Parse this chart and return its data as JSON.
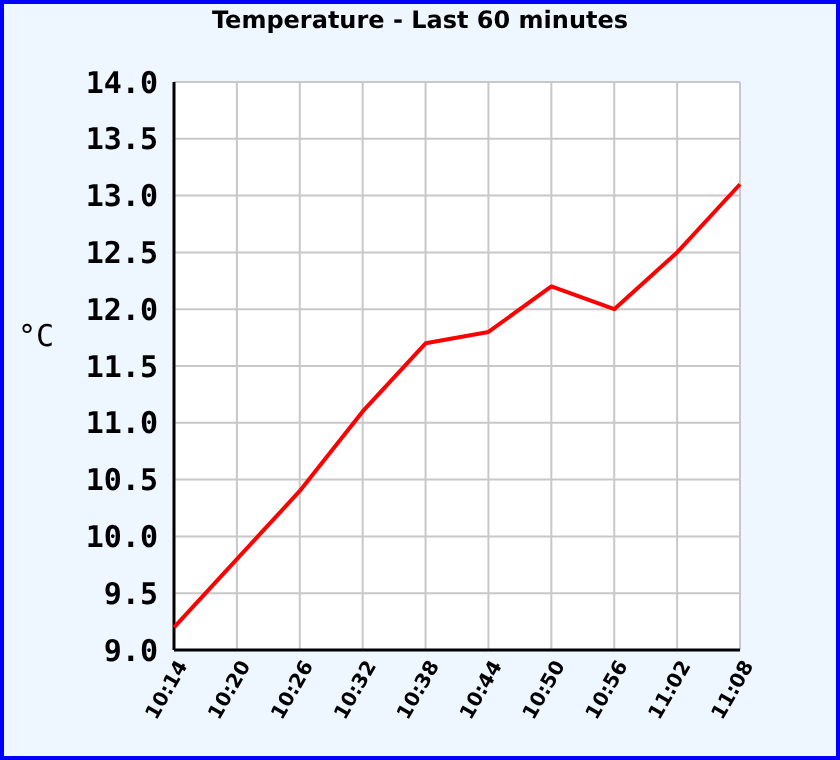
{
  "chart_data": {
    "type": "line",
    "title": "Temperature - Last 60 minutes",
    "ylabel": "°C",
    "categories": [
      "10:14",
      "10:20",
      "10:26",
      "10:32",
      "10:38",
      "10:44",
      "10:50",
      "10:56",
      "11:02",
      "11:08"
    ],
    "series": [
      {
        "color": "#ff0000",
        "values": [
          9.2,
          9.8,
          10.4,
          11.1,
          11.7,
          11.8,
          12.2,
          12.0,
          12.5,
          13.1
        ]
      }
    ],
    "ylim": [
      9,
      14
    ],
    "yticks": [
      {
        "value": 9,
        "label": "9.0"
      },
      {
        "value": 9.5,
        "label": "9.5"
      },
      {
        "value": 10,
        "label": "10.0"
      },
      {
        "value": 10.5,
        "label": "10.5"
      },
      {
        "value": 11,
        "label": "11.0"
      },
      {
        "value": 11.5,
        "label": "11.5"
      },
      {
        "value": 12,
        "label": "12.0"
      },
      {
        "value": 12.5,
        "label": "12.5"
      },
      {
        "value": 13,
        "label": "13.0"
      },
      {
        "value": 13.5,
        "label": "13.5"
      },
      {
        "value": 14,
        "label": "14.0"
      }
    ],
    "grid": true,
    "marker": "none",
    "line_style": "solid"
  }
}
